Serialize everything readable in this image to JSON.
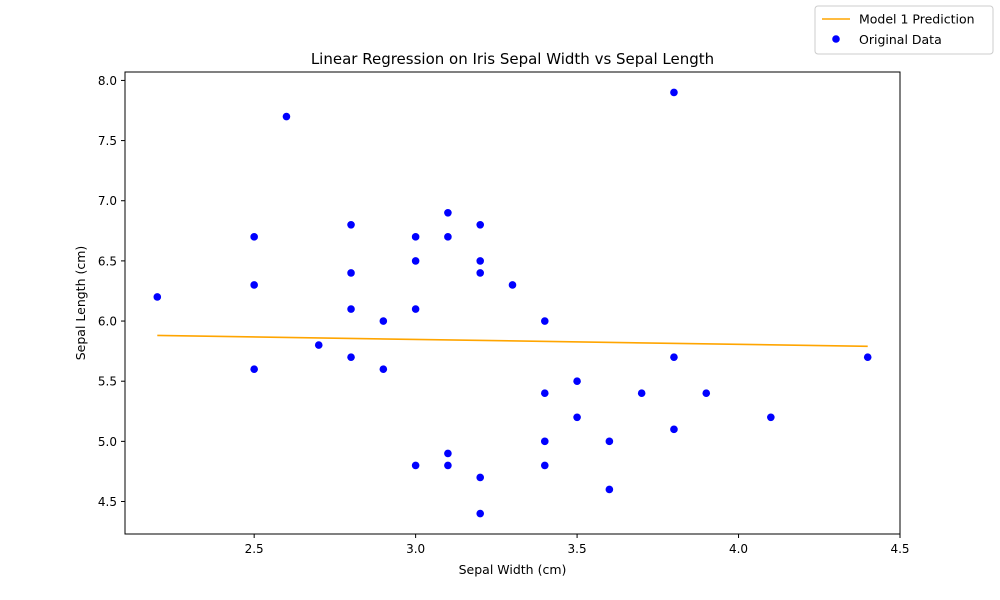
{
  "chart_data": {
    "type": "scatter",
    "title": "Linear Regression on Iris Sepal Width vs Sepal Length",
    "xlabel": "Sepal Width (cm)",
    "ylabel": "Sepal Length (cm)",
    "xlim": [
      2.1,
      4.5
    ],
    "ylim": [
      4.23,
      8.07
    ],
    "xticks": [
      2.5,
      3.0,
      3.5,
      4.0,
      4.5
    ],
    "yticks": [
      4.5,
      5.0,
      5.5,
      6.0,
      6.5,
      7.0,
      7.5,
      8.0
    ],
    "grid": false,
    "legend_placement": "top-right (outside axes)",
    "series": [
      {
        "name": "Model 1 Prediction",
        "kind": "line",
        "color": "#ffa500",
        "x": [
          2.2,
          4.4
        ],
        "y": [
          5.88,
          5.79
        ]
      },
      {
        "name": "Original Data",
        "kind": "scatter",
        "color": "#0000ff",
        "points": [
          [
            2.2,
            6.2
          ],
          [
            2.5,
            6.7
          ],
          [
            2.5,
            6.3
          ],
          [
            2.5,
            5.6
          ],
          [
            2.6,
            7.7
          ],
          [
            2.7,
            5.8
          ],
          [
            2.8,
            6.8
          ],
          [
            2.8,
            6.4
          ],
          [
            2.8,
            6.1
          ],
          [
            2.8,
            5.7
          ],
          [
            2.9,
            6.0
          ],
          [
            2.9,
            5.6
          ],
          [
            3.0,
            6.7
          ],
          [
            3.0,
            6.5
          ],
          [
            3.0,
            6.1
          ],
          [
            3.0,
            4.8
          ],
          [
            3.1,
            6.9
          ],
          [
            3.1,
            6.7
          ],
          [
            3.1,
            4.9
          ],
          [
            3.1,
            4.8
          ],
          [
            3.2,
            6.8
          ],
          [
            3.2,
            6.5
          ],
          [
            3.2,
            6.4
          ],
          [
            3.2,
            4.7
          ],
          [
            3.2,
            4.4
          ],
          [
            3.3,
            6.3
          ],
          [
            3.4,
            6.0
          ],
          [
            3.4,
            5.4
          ],
          [
            3.4,
            5.0
          ],
          [
            3.4,
            4.8
          ],
          [
            3.5,
            5.5
          ],
          [
            3.5,
            5.2
          ],
          [
            3.6,
            5.0
          ],
          [
            3.6,
            4.6
          ],
          [
            3.7,
            5.4
          ],
          [
            3.8,
            7.9
          ],
          [
            3.8,
            5.7
          ],
          [
            3.8,
            5.1
          ],
          [
            3.9,
            5.4
          ],
          [
            4.1,
            5.2
          ],
          [
            4.4,
            5.7
          ]
        ]
      }
    ]
  }
}
